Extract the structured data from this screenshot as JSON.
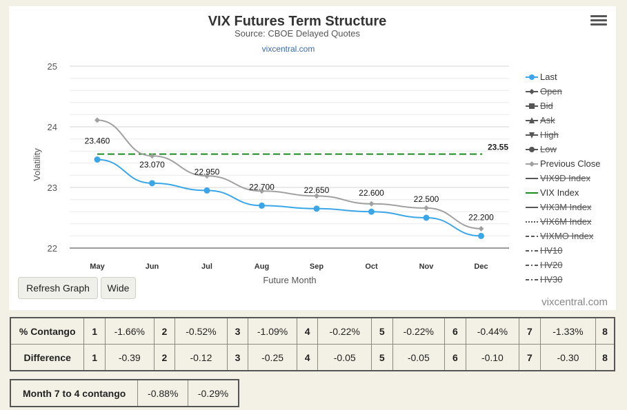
{
  "chart": {
    "title": "VIX Futures Term Structure",
    "subtitle": "Source: CBOE Delayed Quotes",
    "link": "vixcentral.com",
    "credit": "vixcentral.com",
    "ref_line_label": "23.55"
  },
  "buttons": {
    "refresh": "Refresh Graph",
    "wide": "Wide"
  },
  "legend": [
    {
      "label": "Last",
      "enabled": true,
      "symbol": "circle-line",
      "color": "#3aa6e8"
    },
    {
      "label": "Open",
      "enabled": false,
      "symbol": "diamond-line",
      "color": "#555555"
    },
    {
      "label": "Bid",
      "enabled": false,
      "symbol": "square-line",
      "color": "#555555"
    },
    {
      "label": "Ask",
      "enabled": false,
      "symbol": "triangle-line",
      "color": "#555555"
    },
    {
      "label": "High",
      "enabled": false,
      "symbol": "triangle-down-line",
      "color": "#555555"
    },
    {
      "label": "Low",
      "enabled": false,
      "symbol": "circle-line",
      "color": "#555555"
    },
    {
      "label": "Previous Close",
      "enabled": true,
      "symbol": "diamond-line",
      "color": "#a0a0a0"
    },
    {
      "label": "VIX9D Index",
      "enabled": false,
      "symbol": "line",
      "color": "#555555"
    },
    {
      "label": "VIX Index",
      "enabled": true,
      "symbol": "line",
      "color": "#1a8a1a"
    },
    {
      "label": "VIX3M Index",
      "enabled": false,
      "symbol": "line",
      "color": "#555555"
    },
    {
      "label": "VIX6M Index",
      "enabled": false,
      "symbol": "dotted",
      "color": "#555555"
    },
    {
      "label": "VIXMO Index",
      "enabled": false,
      "symbol": "dashed",
      "color": "#555555"
    },
    {
      "label": "HV10",
      "enabled": false,
      "symbol": "dashdot",
      "color": "#555555"
    },
    {
      "label": "HV20",
      "enabled": false,
      "symbol": "dashdot",
      "color": "#555555"
    },
    {
      "label": "HV30",
      "enabled": false,
      "symbol": "dashdot",
      "color": "#555555"
    }
  ],
  "chart_data": {
    "type": "line",
    "title": "VIX Futures Term Structure",
    "subtitle": "Source: CBOE Delayed Quotes",
    "xlabel": "Future Month",
    "ylabel": "Volatility",
    "categories": [
      "May",
      "Jun",
      "Jul",
      "Aug",
      "Sep",
      "Oct",
      "Nov",
      "Dec"
    ],
    "ylim": [
      22,
      25
    ],
    "yticks": [
      22,
      23,
      24,
      25
    ],
    "grid": true,
    "legend_position": "right",
    "series": [
      {
        "name": "Last",
        "color": "#3aa6e8",
        "marker": "circle",
        "values": [
          23.46,
          23.07,
          22.95,
          22.7,
          22.65,
          22.6,
          22.5,
          22.2
        ],
        "labels": [
          "23.460",
          "23.070",
          "22.950",
          "22.700",
          "22.650",
          "22.600",
          "22.500",
          "22.200"
        ]
      },
      {
        "name": "Previous Close",
        "color": "#a0a0a0",
        "marker": "diamond",
        "values": [
          24.11,
          23.52,
          23.19,
          22.94,
          22.86,
          22.73,
          22.66,
          22.32
        ]
      }
    ],
    "reference_lines": [
      {
        "name": "VIX Index",
        "value": 23.55,
        "color": "#1a8a1a",
        "style": "dashed"
      }
    ]
  },
  "contango_table": {
    "rows": [
      {
        "label": "% Contango",
        "cells": [
          "1",
          "-1.66%",
          "2",
          "-0.52%",
          "3",
          "-1.09%",
          "4",
          "-0.22%",
          "5",
          "-0.22%",
          "6",
          "-0.44%",
          "7",
          "-1.33%",
          "8"
        ]
      },
      {
        "label": "Difference",
        "cells": [
          "1",
          "-0.39",
          "2",
          "-0.12",
          "3",
          "-0.25",
          "4",
          "-0.05",
          "5",
          "-0.05",
          "6",
          "-0.10",
          "7",
          "-0.30",
          "8"
        ]
      }
    ]
  },
  "month_table": {
    "label": "Month 7 to 4 contango",
    "values": [
      "-0.88%",
      "-0.29%"
    ]
  }
}
